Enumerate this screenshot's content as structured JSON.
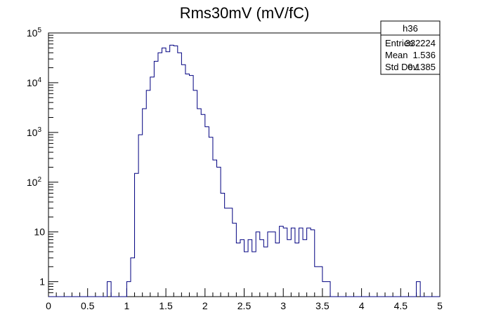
{
  "chart_data": {
    "type": "histogram",
    "title": "Rms30mV (mV/fC)",
    "xlabel": "",
    "ylabel": "",
    "x_range": [
      0,
      5
    ],
    "y_scale": "log",
    "y_range": [
      0.5,
      100000
    ],
    "grid": false,
    "line_color": "#000080",
    "bin_width": 0.05,
    "bin_edges_start": 0,
    "counts": [
      0,
      0,
      0,
      0,
      0,
      0,
      0,
      0,
      0,
      0,
      0,
      0,
      0,
      0,
      0,
      1,
      0,
      0,
      0,
      0,
      1,
      3,
      150,
      900,
      3000,
      7000,
      13000,
      27000,
      40000,
      50000,
      42000,
      57000,
      55000,
      40000,
      23000,
      15000,
      14000,
      7000,
      3000,
      2300,
      1300,
      800,
      280,
      200,
      60,
      30,
      30,
      15,
      6,
      7,
      4,
      7,
      4,
      10,
      7,
      5,
      10,
      10,
      6,
      13,
      12,
      7,
      12,
      6,
      12,
      7,
      12,
      11,
      2,
      2,
      1,
      1,
      0,
      0,
      0,
      0,
      0,
      0,
      0,
      0,
      0,
      0,
      0,
      0,
      0,
      0,
      0,
      0,
      0,
      0,
      0,
      0,
      0,
      0,
      1,
      0,
      0,
      0,
      0,
      0
    ],
    "x_ticks": [
      "0",
      "0.5",
      "1",
      "1.5",
      "2",
      "2.5",
      "3",
      "3.5",
      "4",
      "4.5",
      "5"
    ],
    "y_ticks": [
      {
        "value": 1,
        "label": "1",
        "sup": ""
      },
      {
        "value": 10,
        "label": "10",
        "sup": ""
      },
      {
        "value": 100,
        "label": "10",
        "sup": "2"
      },
      {
        "value": 1000,
        "label": "10",
        "sup": "3"
      },
      {
        "value": 10000,
        "label": "10",
        "sup": "4"
      },
      {
        "value": 100000,
        "label": "10",
        "sup": "5"
      }
    ],
    "stats": {
      "name": "h36",
      "rows": [
        {
          "label": "Entries",
          "value": "332224"
        },
        {
          "label": "Mean",
          "value": "1.536"
        },
        {
          "label": "Std Dev",
          "value": "0.1385"
        }
      ]
    }
  }
}
